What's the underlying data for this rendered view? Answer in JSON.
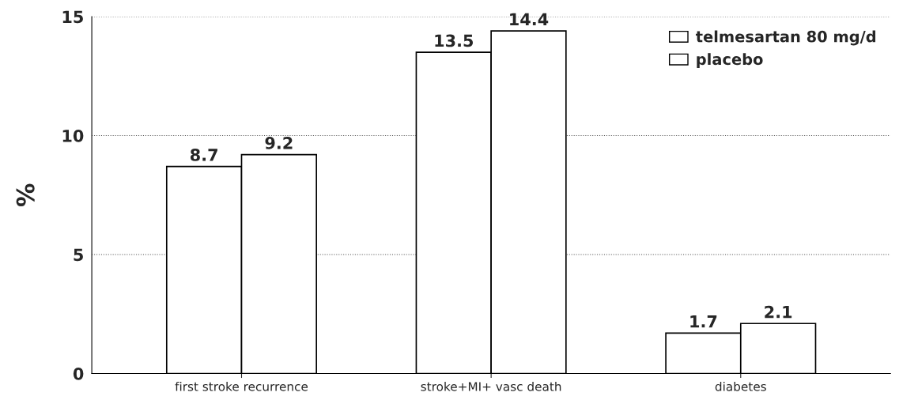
{
  "chart_data": {
    "type": "bar",
    "ylabel": "%",
    "categories": [
      "first stroke recurrence",
      "stroke+MI+ vasc death",
      "diabetes"
    ],
    "series": [
      {
        "name": "telmesartan 80 mg/d",
        "color": "#ffffff",
        "values": [
          8.7,
          13.5,
          1.7
        ]
      },
      {
        "name": "placebo",
        "color": "#ffffff",
        "values": [
          9.2,
          14.4,
          2.1
        ]
      }
    ],
    "ylim": [
      0,
      15
    ],
    "yticks": [
      0,
      5,
      10,
      15
    ],
    "grid": "y",
    "legend": "top right",
    "data_labels": true
  }
}
